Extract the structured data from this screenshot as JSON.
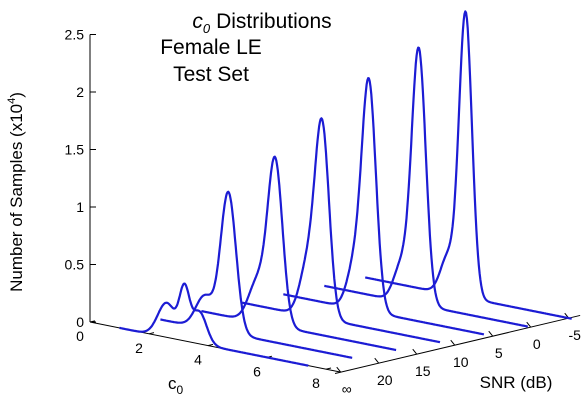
{
  "chart_data": {
    "type": "line",
    "title_lines": [
      "Distributions",
      "Female LE",
      "Test Set"
    ],
    "title_symbol": {
      "base": "c",
      "sub": "0"
    },
    "ylabel": "Number of Samples (x10",
    "ylabel_exp": "4",
    "ylabel_close": ")",
    "xlabel": {
      "base": "c",
      "sub": "0"
    },
    "zlabel": "SNR (dB)",
    "y_ticks": [
      {
        "v": 0,
        "label": "0"
      },
      {
        "v": 0.5,
        "label": "0.5"
      },
      {
        "v": 1,
        "label": "1"
      },
      {
        "v": 1.5,
        "label": "1.5"
      },
      {
        "v": 2,
        "label": "2"
      },
      {
        "v": 2.5,
        "label": "2.5"
      }
    ],
    "x_ticks": [
      {
        "v": 0,
        "label": "0"
      },
      {
        "v": 2,
        "label": "2"
      },
      {
        "v": 4,
        "label": "4"
      },
      {
        "v": 6,
        "label": "6"
      },
      {
        "v": 8,
        "label": "8"
      }
    ],
    "z_ticks": [
      "∞",
      "20",
      "15",
      "10",
      "5",
      "0",
      "-5"
    ],
    "xlim": [
      0,
      8.5
    ],
    "ylim": [
      0,
      2.5
    ],
    "series": [
      {
        "snr": "-5",
        "x_range": [
          1.6,
          8.6
        ],
        "peaks": [
          {
            "mu": 5.0,
            "sigma": 0.22,
            "amp": 2.47
          },
          {
            "mu": 4.4,
            "sigma": 0.25,
            "amp": 0.32
          }
        ]
      },
      {
        "snr": "0",
        "x_range": [
          1.5,
          8.4
        ],
        "peaks": [
          {
            "mu": 4.7,
            "sigma": 0.24,
            "amp": 2.22
          },
          {
            "mu": 4.1,
            "sigma": 0.25,
            "amp": 0.3
          }
        ]
      },
      {
        "snr": "5",
        "x_range": [
          1.4,
          8.2
        ],
        "peaks": [
          {
            "mu": 4.3,
            "sigma": 0.24,
            "amp": 1.98
          },
          {
            "mu": 3.8,
            "sigma": 0.25,
            "amp": 0.35
          }
        ]
      },
      {
        "snr": "10",
        "x_range": [
          1.3,
          8.0
        ],
        "peaks": [
          {
            "mu": 4.0,
            "sigma": 0.24,
            "amp": 1.67
          },
          {
            "mu": 3.5,
            "sigma": 0.26,
            "amp": 0.42
          }
        ]
      },
      {
        "snr": "15",
        "x_range": [
          1.2,
          7.8
        ],
        "peaks": [
          {
            "mu": 3.7,
            "sigma": 0.25,
            "amp": 1.42
          },
          {
            "mu": 3.1,
            "sigma": 0.3,
            "amp": 0.35
          }
        ]
      },
      {
        "snr": "20",
        "x_range": [
          1.1,
          7.6
        ],
        "peaks": [
          {
            "mu": 3.4,
            "sigma": 0.26,
            "amp": 1.22
          },
          {
            "mu": 2.6,
            "sigma": 0.3,
            "amp": 0.28
          }
        ]
      },
      {
        "snr": "∞",
        "x_range": [
          1.0,
          7.4
        ],
        "peaks": [
          {
            "mu": 3.2,
            "sigma": 0.17,
            "amp": 0.42
          },
          {
            "mu": 2.6,
            "sigma": 0.3,
            "amp": 0.3
          },
          {
            "mu": 3.7,
            "sigma": 0.25,
            "amp": 0.28
          }
        ]
      }
    ],
    "line_color": "#1c1cd4",
    "grid": false
  }
}
